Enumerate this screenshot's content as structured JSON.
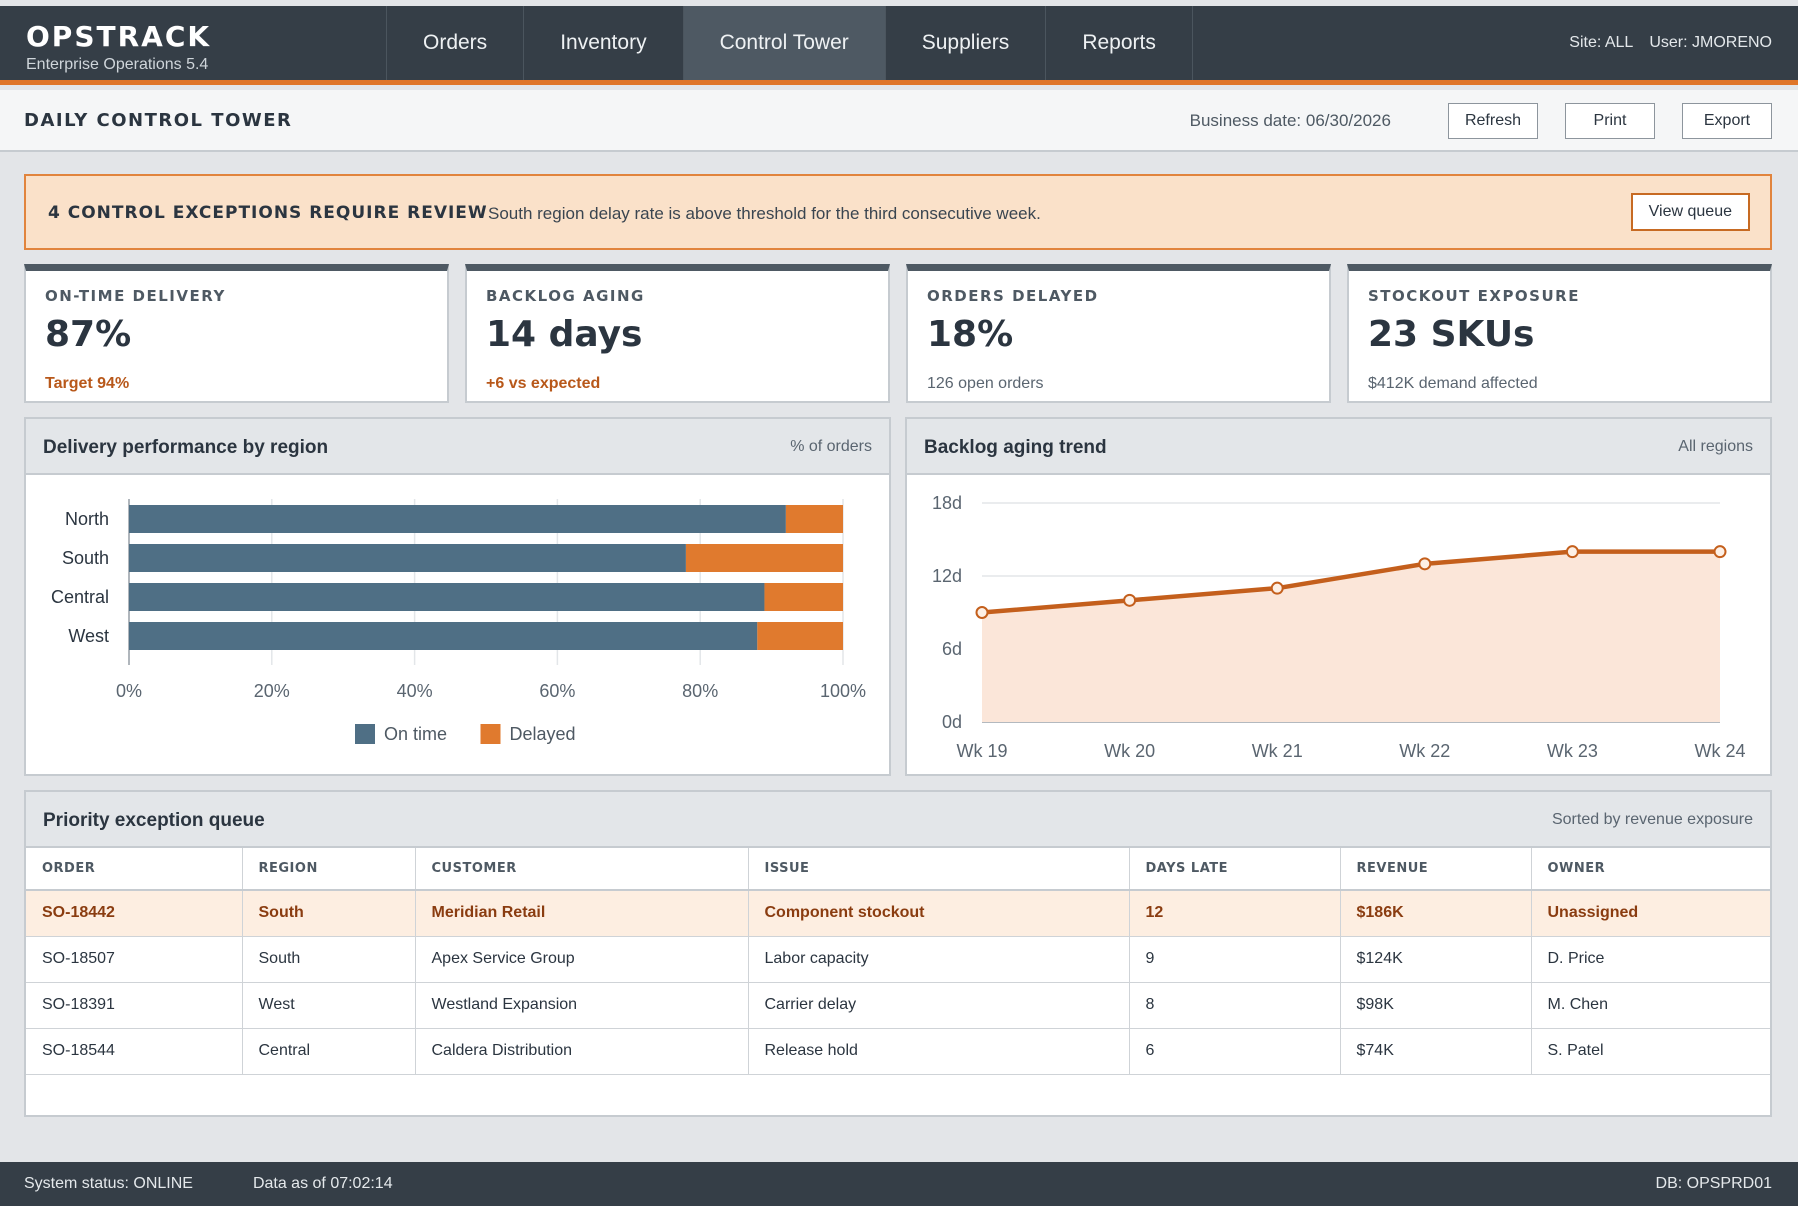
{
  "app": {
    "name": "OPSTRACK",
    "subtitle": "Enterprise Operations 5.4"
  },
  "nav": {
    "tabs": [
      "Orders",
      "Inventory",
      "Control Tower",
      "Suppliers",
      "Reports"
    ],
    "active": "Control Tower"
  },
  "session": {
    "site": "Site: ALL",
    "user": "User: JMORENO"
  },
  "page": {
    "title": "DAILY CONTROL TOWER",
    "business_date": "Business date: 06/30/2026",
    "actions": {
      "refresh": "Refresh",
      "print": "Print",
      "export": "Export"
    }
  },
  "alert": {
    "title": "4 CONTROL EXCEPTIONS REQUIRE REVIEW",
    "message": "South region delay rate is above threshold for the third consecutive week.",
    "action": "View queue"
  },
  "kpis": [
    {
      "label": "ON-TIME DELIVERY",
      "value": "87%",
      "sub": "Target 94%"
    },
    {
      "label": "BACKLOG AGING",
      "value": "14 days",
      "sub": "+6 vs expected"
    },
    {
      "label": "ORDERS DELAYED",
      "value": "18%",
      "sub": "126 open orders"
    },
    {
      "label": "STOCKOUT EXPOSURE",
      "value": "23 SKUs",
      "sub": "$412K demand affected"
    }
  ],
  "panels": {
    "delivery": {
      "title": "Delivery performance by region",
      "note": "% of orders"
    },
    "backlog": {
      "title": "Backlog aging trend",
      "note": "All regions"
    },
    "queue": {
      "title": "Priority exception queue",
      "note": "Sorted by revenue exposure"
    }
  },
  "chart_data": [
    {
      "type": "bar",
      "orientation": "horizontal",
      "stacked": true,
      "categories": [
        "North",
        "South",
        "Central",
        "West"
      ],
      "series": [
        {
          "name": "On time",
          "values": [
            92,
            78,
            89,
            88
          ]
        },
        {
          "name": "Delayed",
          "values": [
            8,
            22,
            11,
            12
          ]
        }
      ],
      "xlim": [
        0,
        100
      ],
      "xticks": [
        "0%",
        "20%",
        "40%",
        "60%",
        "80%",
        "100%"
      ],
      "grid": true,
      "legend": "bottom",
      "colors": {
        "On time": "#4f6f85",
        "Delayed": "#e07a2e"
      }
    },
    {
      "type": "area",
      "categories": [
        "Wk 19",
        "Wk 20",
        "Wk 21",
        "Wk 22",
        "Wk 23",
        "Wk 24"
      ],
      "series": [
        {
          "values": [
            9,
            10,
            11,
            13,
            14,
            14
          ]
        }
      ],
      "ylim": [
        0,
        18
      ],
      "yticks": [
        "0d",
        "6d",
        "12d",
        "18d"
      ],
      "grid": true,
      "colors": {
        "line": "#c45f1c",
        "fill": "#fbe6d9"
      }
    }
  ],
  "queue": {
    "columns": [
      "ORDER",
      "REGION",
      "CUSTOMER",
      "ISSUE",
      "DAYS LATE",
      "REVENUE",
      "OWNER"
    ],
    "rows": [
      [
        "SO-18442",
        "South",
        "Meridian Retail",
        "Component stockout",
        "12",
        "$186K",
        "Unassigned"
      ],
      [
        "SO-18507",
        "South",
        "Apex Service Group",
        "Labor capacity",
        "9",
        "$124K",
        "D. Price"
      ],
      [
        "SO-18391",
        "West",
        "Westland Expansion",
        "Carrier delay",
        "8",
        "$98K",
        "M. Chen"
      ],
      [
        "SO-18544",
        "Central",
        "Caldera Distribution",
        "Release hold",
        "6",
        "$74K",
        "S. Patel"
      ]
    ]
  },
  "status": {
    "system": "System status: ONLINE",
    "data_as_of": "Data as of 07:02:14",
    "db": "DB: OPSPRD01"
  }
}
